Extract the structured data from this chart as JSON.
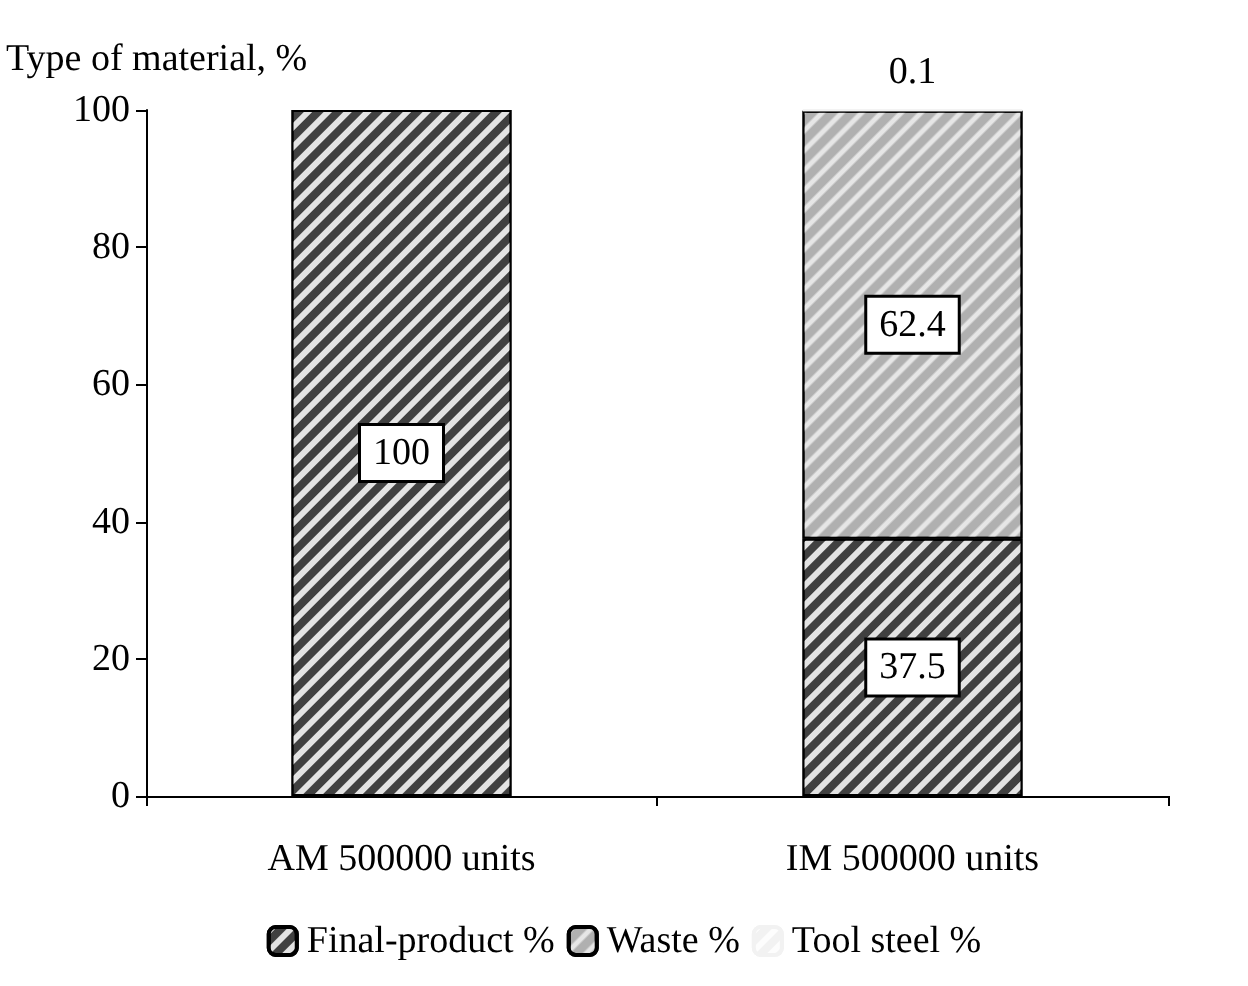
{
  "chart_data": {
    "type": "bar",
    "stacked": true,
    "ylabel": "Type of material, %",
    "categories": [
      "AM 500000 units",
      "IM 500000 units"
    ],
    "series": [
      {
        "name": "Final-product %",
        "color": "#404040",
        "values": [
          100,
          37.5
        ],
        "value_labels": [
          "100",
          "37.5"
        ]
      },
      {
        "name": "Waste %",
        "color": "#b0b0b0",
        "values": [
          null,
          62.4
        ],
        "value_labels": [
          null,
          "62.4"
        ]
      },
      {
        "name": "Tool steel %",
        "color": "#f2f2f2",
        "values": [
          null,
          0.1
        ],
        "value_labels": [
          null,
          "0.1"
        ]
      }
    ],
    "ylim": [
      0,
      100
    ],
    "yticks": [
      0,
      20,
      40,
      60,
      80,
      100
    ],
    "grid": false,
    "legend": "bottom"
  }
}
